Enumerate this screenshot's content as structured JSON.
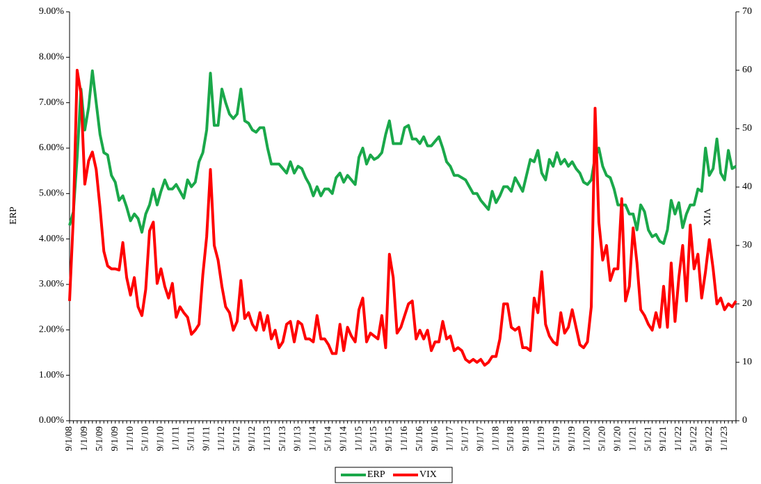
{
  "chart_data": {
    "type": "line",
    "y_label": "ERP",
    "y2_label": "VIX",
    "categories": [
      "9/1/08",
      null,
      null,
      null,
      "1/1/09",
      null,
      null,
      null,
      "5/1/09",
      null,
      null,
      null,
      "9/1/09",
      null,
      null,
      null,
      "1/1/10",
      null,
      null,
      null,
      "5/1/10",
      null,
      null,
      null,
      "9/1/10",
      null,
      null,
      null,
      "1/1/11",
      null,
      null,
      null,
      "5/1/11",
      null,
      null,
      null,
      "9/1/11",
      null,
      null,
      null,
      "1/1/12",
      null,
      null,
      null,
      "5/1/12",
      null,
      null,
      null,
      "9/1/12",
      null,
      null,
      null,
      "1/1/13",
      null,
      null,
      null,
      "5/1/13",
      null,
      null,
      null,
      "9/1/13",
      null,
      null,
      null,
      "1/1/14",
      null,
      null,
      null,
      "5/1/14",
      null,
      null,
      null,
      "9/1/14",
      null,
      null,
      null,
      "1/1/15",
      null,
      null,
      null,
      "5/1/15",
      null,
      null,
      null,
      "9/1/15",
      null,
      null,
      null,
      "1/1/16",
      null,
      null,
      null,
      "5/1/16",
      null,
      null,
      null,
      "9/1/16",
      null,
      null,
      null,
      "1/1/17",
      null,
      null,
      null,
      "5/1/17",
      null,
      null,
      null,
      "9/1/17",
      null,
      null,
      null,
      "1/1/18",
      null,
      null,
      null,
      "5/1/18",
      null,
      null,
      null,
      "9/1/18",
      null,
      null,
      null,
      "1/1/19",
      null,
      null,
      null,
      "5/1/19",
      null,
      null,
      null,
      "9/1/19",
      null,
      null,
      null,
      "1/1/20",
      null,
      null,
      null,
      "5/1/20",
      null,
      null,
      null,
      "9/1/20",
      null,
      null,
      null,
      "1/1/21",
      null,
      null,
      null,
      "5/1/21",
      null,
      null,
      null,
      "9/1/21",
      null,
      null,
      null,
      "1/1/22",
      null,
      null,
      null,
      "5/1/22",
      null,
      null,
      null,
      "9/1/22",
      null,
      null,
      null,
      "1/1/23",
      null,
      null,
      null
    ],
    "series": [
      {
        "name": "ERP",
        "color": "#1aa84a",
        "axis": "y",
        "values": [
          4.3,
          4.6,
          5.8,
          7.3,
          6.4,
          6.9,
          7.7,
          7.0,
          6.3,
          5.9,
          5.85,
          5.4,
          5.25,
          4.85,
          4.95,
          4.7,
          4.4,
          4.55,
          4.45,
          4.15,
          4.55,
          4.75,
          5.1,
          4.75,
          5.05,
          5.3,
          5.1,
          5.1,
          5.2,
          5.05,
          4.9,
          5.3,
          5.15,
          5.25,
          5.7,
          5.9,
          6.4,
          7.65,
          6.5,
          6.5,
          7.3,
          7.0,
          6.75,
          6.65,
          6.75,
          7.3,
          6.6,
          6.55,
          6.4,
          6.35,
          6.45,
          6.45,
          6.0,
          5.65,
          5.65,
          5.65,
          5.55,
          5.45,
          5.7,
          5.45,
          5.6,
          5.55,
          5.35,
          5.2,
          4.95,
          5.15,
          4.95,
          5.1,
          5.1,
          5.0,
          5.35,
          5.45,
          5.25,
          5.4,
          5.3,
          5.2,
          5.8,
          6.0,
          5.65,
          5.85,
          5.75,
          5.8,
          5.9,
          6.3,
          6.6,
          6.1,
          6.1,
          6.1,
          6.45,
          6.5,
          6.2,
          6.2,
          6.1,
          6.25,
          6.05,
          6.05,
          6.15,
          6.25,
          6.0,
          5.7,
          5.6,
          5.4,
          5.4,
          5.35,
          5.3,
          5.15,
          5.0,
          5.0,
          4.85,
          4.75,
          4.65,
          5.05,
          4.8,
          4.95,
          5.15,
          5.15,
          5.05,
          5.35,
          5.2,
          5.05,
          5.4,
          5.75,
          5.7,
          5.95,
          5.45,
          5.3,
          5.75,
          5.6,
          5.9,
          5.65,
          5.75,
          5.6,
          5.7,
          5.55,
          5.45,
          5.25,
          5.2,
          5.3,
          5.8,
          6.0,
          5.6,
          5.4,
          5.35,
          5.1,
          4.75,
          4.75,
          4.75,
          4.55,
          4.55,
          4.2,
          4.75,
          4.6,
          4.2,
          4.05,
          4.1,
          3.95,
          3.9,
          4.2,
          4.85,
          4.55,
          4.8,
          4.25,
          4.55,
          4.75,
          4.75,
          5.1,
          5.05,
          6.0,
          5.4,
          5.55,
          6.2,
          5.45,
          5.3,
          5.95,
          5.55,
          5.6
        ]
      },
      {
        "name": "VIX",
        "color": "#ff0000",
        "axis": "y2",
        "values": [
          20.5,
          35,
          60,
          56,
          40.5,
          44.5,
          46,
          43,
          36.5,
          29,
          26.5,
          26,
          26,
          25.8,
          30.5,
          24.5,
          21.5,
          24.5,
          19.5,
          18,
          22.5,
          32.5,
          34,
          23.5,
          26,
          23,
          21,
          23.5,
          17.7,
          19.5,
          18.5,
          17.7,
          14.8,
          15.5,
          16.5,
          25,
          31.5,
          43,
          30,
          27.5,
          23,
          19.5,
          18.5,
          15.5,
          17,
          24,
          17.5,
          18.5,
          16.5,
          15.5,
          18.5,
          15.5,
          18,
          14,
          15.5,
          12.5,
          13.5,
          16.5,
          17,
          13.5,
          17,
          16.5,
          14,
          14,
          13.5,
          18,
          14,
          14,
          13,
          11.5,
          11.5,
          16.5,
          12,
          16,
          14.5,
          13.5,
          19,
          21,
          13.5,
          15,
          14.5,
          14,
          18,
          12.5,
          28.5,
          24.5,
          15,
          16,
          18,
          20,
          20.5,
          14,
          15.5,
          14,
          15.5,
          12,
          13.5,
          13.5,
          17,
          14,
          14.5,
          12,
          12.5,
          12,
          10.5,
          10,
          10.5,
          10,
          10.5,
          9.5,
          10,
          11,
          11,
          14,
          20,
          20,
          16,
          15.5,
          16,
          12.5,
          12.5,
          12,
          21,
          18.5,
          25.5,
          16.5,
          14.5,
          13.5,
          13,
          18.5,
          15,
          16,
          19,
          16,
          13,
          12.5,
          13.5,
          19.5,
          53.5,
          34,
          27.5,
          30,
          24,
          26,
          26,
          38,
          20.5,
          23,
          33,
          27,
          19,
          18,
          16.5,
          15.5,
          18.5,
          16,
          23,
          16,
          27,
          17,
          24.5,
          30,
          20.5,
          33.5,
          26,
          28.5,
          21,
          25.5,
          31,
          26,
          20,
          21,
          19,
          20,
          19.5,
          20.5
        ]
      }
    ],
    "ylim": [
      0,
      9
    ],
    "yticks": [
      {
        "value": 0,
        "label": "0.00%"
      },
      {
        "value": 1,
        "label": "1.00%"
      },
      {
        "value": 2,
        "label": "2.00%"
      },
      {
        "value": 3,
        "label": "3.00%"
      },
      {
        "value": 4,
        "label": "4.00%"
      },
      {
        "value": 5,
        "label": "5.00%"
      },
      {
        "value": 6,
        "label": "6.00%"
      },
      {
        "value": 7,
        "label": "7.00%"
      },
      {
        "value": 8,
        "label": "8.00%"
      },
      {
        "value": 9,
        "label": "9.00%"
      }
    ],
    "y2lim": [
      0,
      70
    ],
    "y2ticks": [
      0,
      10,
      20,
      30,
      40,
      50,
      60,
      70
    ],
    "legend": "bottom"
  }
}
